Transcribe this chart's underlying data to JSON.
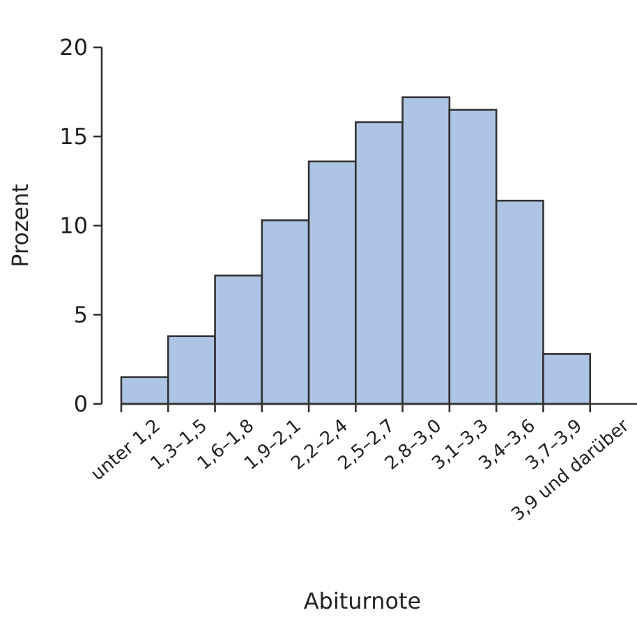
{
  "chart_data": {
    "type": "bar",
    "xlabel": "Abiturnote",
    "ylabel": "Prozent",
    "categories": [
      "unter 1,2",
      "1,3–1,5",
      "1,6–1,8",
      "1,9–2,1",
      "2,2–2,4",
      "2,5–2,7",
      "2,8–3,0",
      "3,1–3,3",
      "3,4–3,6",
      "3,7–3,9",
      "3,9 und darüber"
    ],
    "values": [
      1.5,
      3.8,
      7.2,
      10.3,
      13.6,
      15.8,
      17.2,
      16.5,
      11.4,
      2.8,
      0
    ],
    "color": "#aec4e5",
    "ylim": [
      0,
      20
    ],
    "yticks": [
      0,
      5,
      10,
      15,
      20
    ],
    "grid": false
  }
}
